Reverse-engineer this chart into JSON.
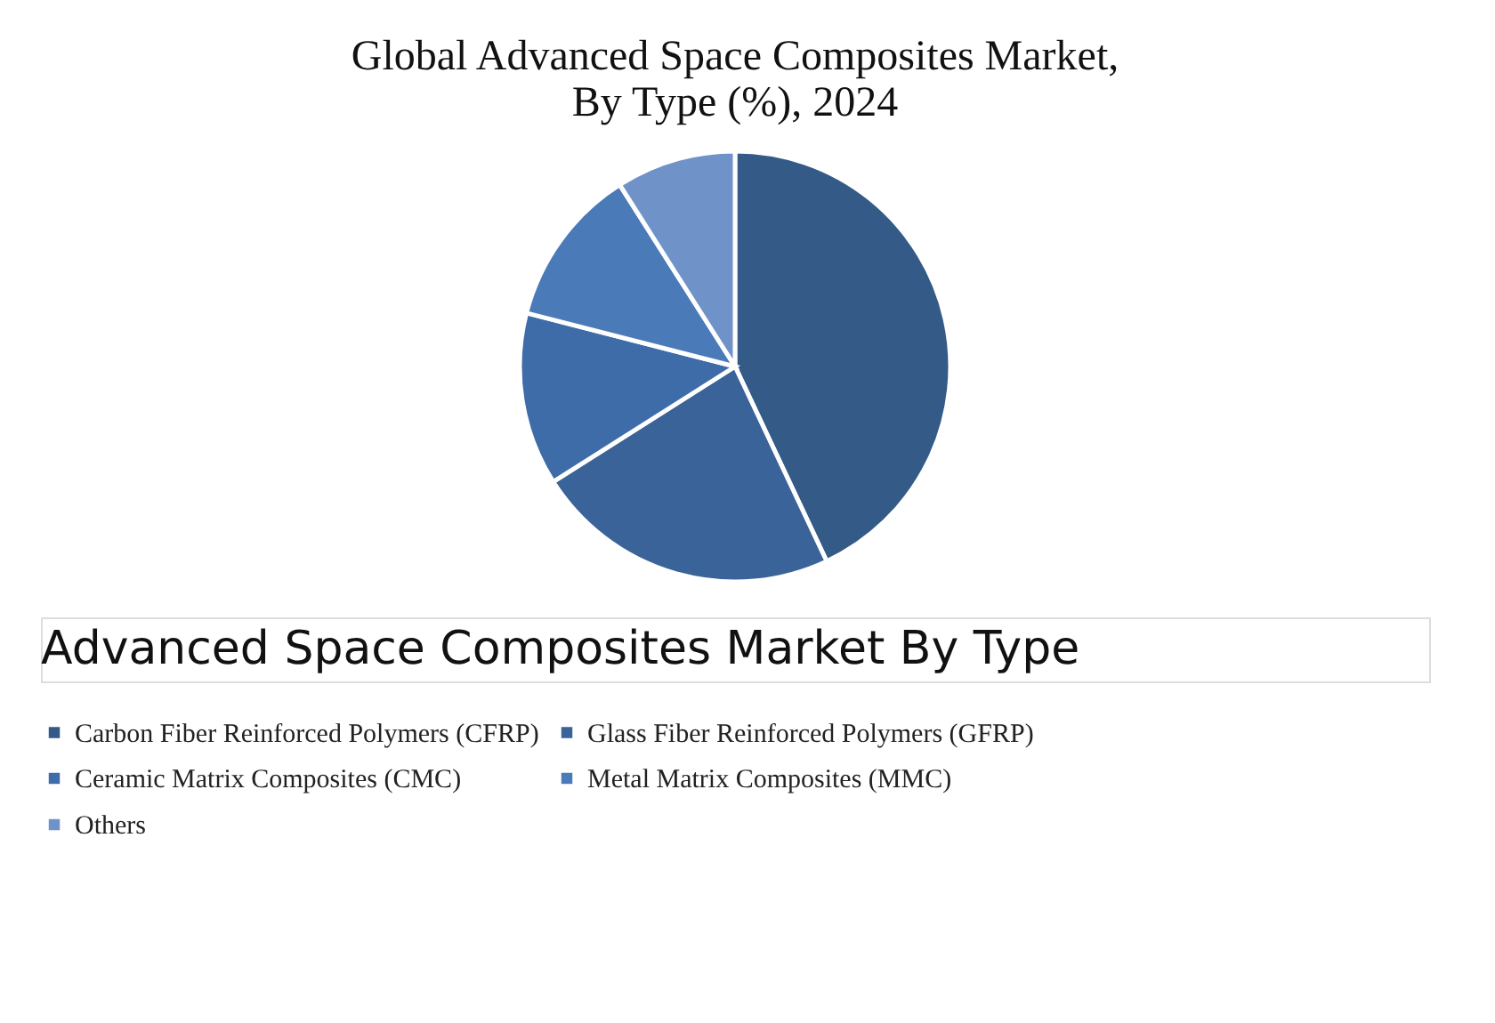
{
  "chart_data": {
    "type": "pie",
    "title": "Global Advanced Space Composites Market, By Type (%), 2024",
    "categories": [
      "Carbon Fiber Reinforced Polymers (CFRP)",
      "Glass Fiber Reinforced Polymers (GFRP)",
      "Ceramic Matrix Composites (CMC)",
      "Metal Matrix Composites (MMC)",
      "Others"
    ],
    "values": [
      43,
      23,
      13,
      12,
      9
    ],
    "colors": [
      "#345a87",
      "#3a6399",
      "#3e6ca8",
      "#4a7bb8",
      "#6f93c9"
    ],
    "legend": "bottom",
    "annotations": [
      "Advanced Space Composites Market By Type"
    ]
  }
}
